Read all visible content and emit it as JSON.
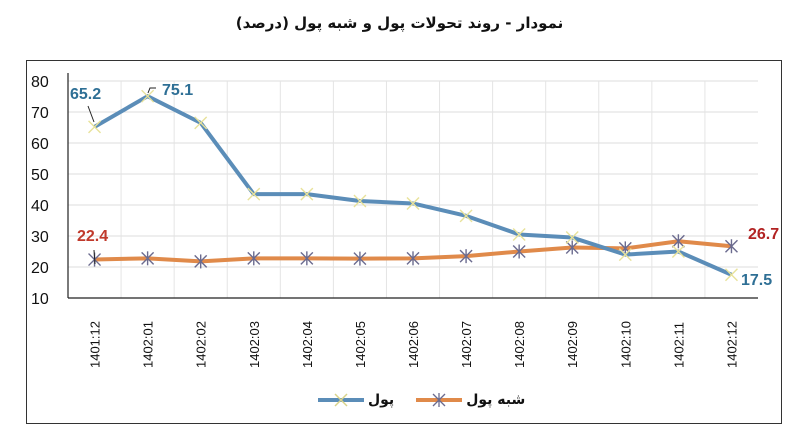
{
  "title": "نمودار - روند تحولات پول و شبه پول (درصد)",
  "chart_data": {
    "type": "line",
    "title": "نمودار - روند تحولات پول و شبه پول (درصد)",
    "xlabel": "",
    "ylabel": "",
    "ylim": [
      10,
      80
    ],
    "yticks": [
      10,
      20,
      30,
      40,
      50,
      60,
      70,
      80
    ],
    "grid": true,
    "legend_position": "bottom",
    "categories": [
      "1401:12",
      "1402:01",
      "1402:02",
      "1402:03",
      "1402:04",
      "1402:05",
      "1402:06",
      "1402:07",
      "1402:08",
      "1402:09",
      "1402:10",
      "1402:11",
      "1402:12"
    ],
    "series": [
      {
        "name": "پول",
        "color": "#5b8db8",
        "marker": "x",
        "marker_color": "#e8e29a",
        "values": [
          65.2,
          75.1,
          66.5,
          43.5,
          43.5,
          41.3,
          40.5,
          36.5,
          30.5,
          29.5,
          24.0,
          25.0,
          17.5
        ]
      },
      {
        "name": "شبه پول",
        "color": "#e08a4a",
        "marker": "asterisk",
        "marker_color": "#6b6b8f",
        "values": [
          22.4,
          22.8,
          21.8,
          22.8,
          22.8,
          22.7,
          22.8,
          23.5,
          25.0,
          26.3,
          26.0,
          28.3,
          26.7
        ]
      }
    ],
    "annotations": [
      {
        "series": "پول",
        "index": 0,
        "text": "65.2",
        "color": "#2e6f95"
      },
      {
        "series": "پول",
        "index": 1,
        "text": "75.1",
        "color": "#2e6f95"
      },
      {
        "series": "پول",
        "index": 12,
        "text": "17.5",
        "color": "#2e6f95"
      },
      {
        "series": "شبه پول",
        "index": 0,
        "text": "22.4",
        "color": "#c0392b"
      },
      {
        "series": "شبه پول",
        "index": 12,
        "text": "26.7",
        "color": "#b22222"
      }
    ]
  },
  "legend": {
    "items": [
      {
        "label": "شبه پول",
        "color": "#e08a4a"
      },
      {
        "label": "پول",
        "color": "#5b8db8"
      }
    ]
  }
}
